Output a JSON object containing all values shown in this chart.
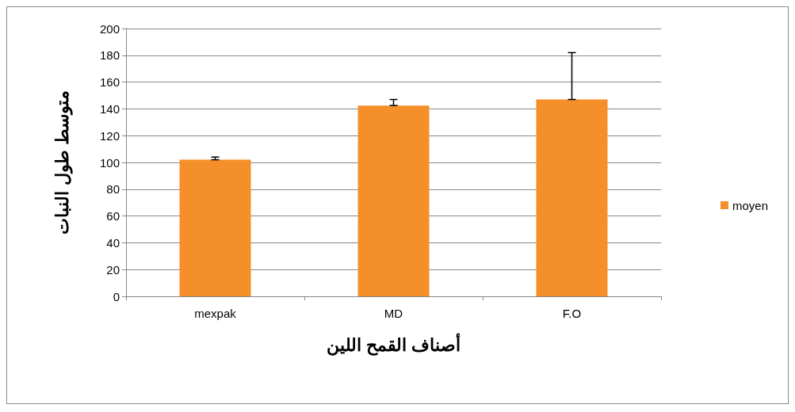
{
  "chart_data": {
    "type": "bar",
    "xlabel": "أصناف القمح اللين",
    "ylabel": "متوسط طول النبات",
    "categories": [
      "mexpak",
      "MD",
      "F.O"
    ],
    "series": [
      {
        "name": "moyen",
        "color": "#f58f2a",
        "values": [
          102,
          142.5,
          147
        ],
        "errors": [
          [
            102,
            104
          ],
          [
            142.5,
            147
          ],
          [
            147,
            182
          ]
        ]
      }
    ],
    "ylim": [
      0,
      200
    ],
    "yticks": [
      0,
      20,
      40,
      60,
      80,
      100,
      120,
      140,
      160,
      180,
      200
    ],
    "grid": "y",
    "legend": "right"
  }
}
